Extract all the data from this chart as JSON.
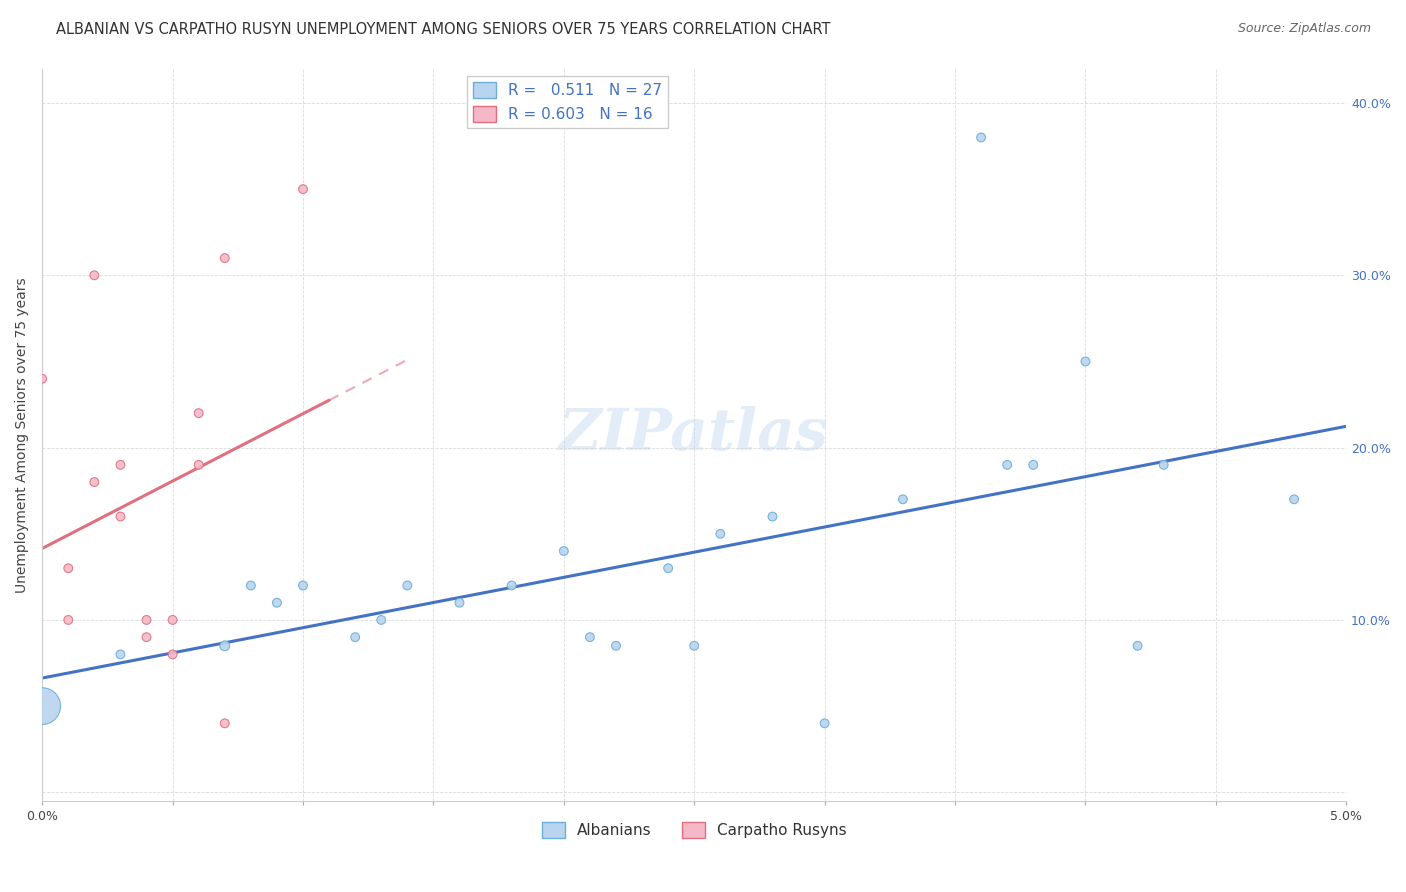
{
  "title": "ALBANIAN VS CARPATHO RUSYN UNEMPLOYMENT AMONG SENIORS OVER 75 YEARS CORRELATION CHART",
  "source": "Source: ZipAtlas.com",
  "ylabel": "Unemployment Among Seniors over 75 years",
  "xlim": [
    0.0,
    0.05
  ],
  "ylim": [
    -0.005,
    0.42
  ],
  "xticks": [
    0.0,
    0.005,
    0.01,
    0.015,
    0.02,
    0.025,
    0.03,
    0.035,
    0.04,
    0.045,
    0.05
  ],
  "yticks": [
    0.0,
    0.1,
    0.2,
    0.3,
    0.4
  ],
  "xticklabels": [
    "0.0%",
    "",
    "",
    "",
    "",
    "",
    "",
    "",
    "",
    "",
    "5.0%"
  ],
  "albanian_color": "#b8d4ee",
  "albanian_edge": "#6baed6",
  "carpatho_color": "#f4b8c8",
  "carpatho_edge": "#e07080",
  "trend_albanian_color": "#4472c4",
  "trend_carpatho_color": "#e07080",
  "R_albanian": 0.511,
  "N_albanian": 27,
  "R_carpatho": 0.603,
  "N_carpatho": 16,
  "watermark": "ZIPatlas",
  "background_color": "#ffffff",
  "grid_color": "#cccccc",
  "albanian_x": [
    0.0,
    0.003,
    0.007,
    0.008,
    0.009,
    0.01,
    0.012,
    0.013,
    0.014,
    0.016,
    0.018,
    0.02,
    0.021,
    0.022,
    0.024,
    0.025,
    0.026,
    0.028,
    0.03,
    0.033,
    0.036,
    0.037,
    0.038,
    0.04,
    0.042,
    0.043,
    0.048
  ],
  "albanian_y": [
    0.05,
    0.08,
    0.085,
    0.12,
    0.11,
    0.12,
    0.09,
    0.1,
    0.12,
    0.11,
    0.12,
    0.14,
    0.09,
    0.085,
    0.13,
    0.085,
    0.15,
    0.16,
    0.04,
    0.17,
    0.38,
    0.19,
    0.19,
    0.25,
    0.085,
    0.19,
    0.17
  ],
  "albanian_sizes": [
    700,
    40,
    50,
    40,
    40,
    40,
    40,
    40,
    40,
    40,
    40,
    40,
    40,
    40,
    40,
    40,
    40,
    40,
    40,
    40,
    40,
    40,
    40,
    40,
    40,
    40,
    40
  ],
  "carpatho_x": [
    0.0,
    0.001,
    0.001,
    0.002,
    0.002,
    0.003,
    0.003,
    0.004,
    0.004,
    0.005,
    0.005,
    0.006,
    0.006,
    0.007,
    0.007,
    0.01
  ],
  "carpatho_y": [
    0.24,
    0.1,
    0.13,
    0.18,
    0.3,
    0.16,
    0.19,
    0.09,
    0.1,
    0.08,
    0.1,
    0.22,
    0.19,
    0.31,
    0.04,
    0.35
  ],
  "carpatho_sizes": [
    40,
    40,
    40,
    40,
    40,
    40,
    40,
    40,
    40,
    40,
    40,
    40,
    40,
    40,
    40,
    40
  ],
  "title_fontsize": 10.5,
  "source_fontsize": 9,
  "axis_fontsize": 9,
  "legend_fontsize": 11,
  "watermark_fontsize": 42,
  "watermark_color": "#c0d8ee",
  "watermark_alpha": 0.45,
  "right_axis_color": "#4472c4"
}
